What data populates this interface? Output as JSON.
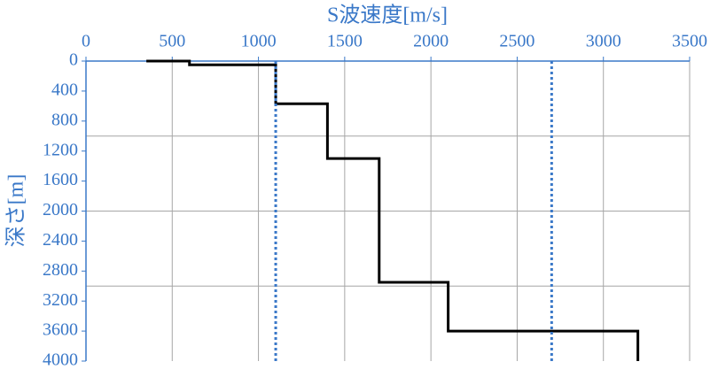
{
  "chart_data": {
    "type": "line",
    "x_label": "S波速度[m/s]",
    "y_label": "深さ[m]",
    "xlim": [
      0,
      3500
    ],
    "xticks": [
      0,
      500,
      1000,
      1500,
      2000,
      2500,
      3000,
      3500
    ],
    "ylim": [
      0,
      4000
    ],
    "y_inverted": true,
    "yticks": [
      0,
      400,
      800,
      1200,
      1600,
      2000,
      2400,
      2800,
      3200,
      3600,
      4000
    ],
    "xgrid": true,
    "ygrid": [
      1000,
      2000,
      3000
    ],
    "axis_color": "#3a78c8",
    "series": [
      {
        "color": "#000000",
        "style": "solid",
        "x": [
          350,
          600,
          600,
          1100,
          1100,
          1400,
          1400,
          1700,
          1700,
          2100,
          2100,
          3200,
          3200
        ],
        "values": [
          0,
          0,
          50,
          50,
          570,
          570,
          1300,
          1300,
          2950,
          2950,
          3600,
          3600,
          4000
        ]
      },
      {
        "color": "#3a78c8",
        "style": "dotted",
        "x": [
          1100,
          1100
        ],
        "values": [
          0,
          4000
        ]
      },
      {
        "color": "#3a78c8",
        "style": "dotted",
        "x": [
          2700,
          2700
        ],
        "values": [
          0,
          4000
        ]
      }
    ]
  }
}
